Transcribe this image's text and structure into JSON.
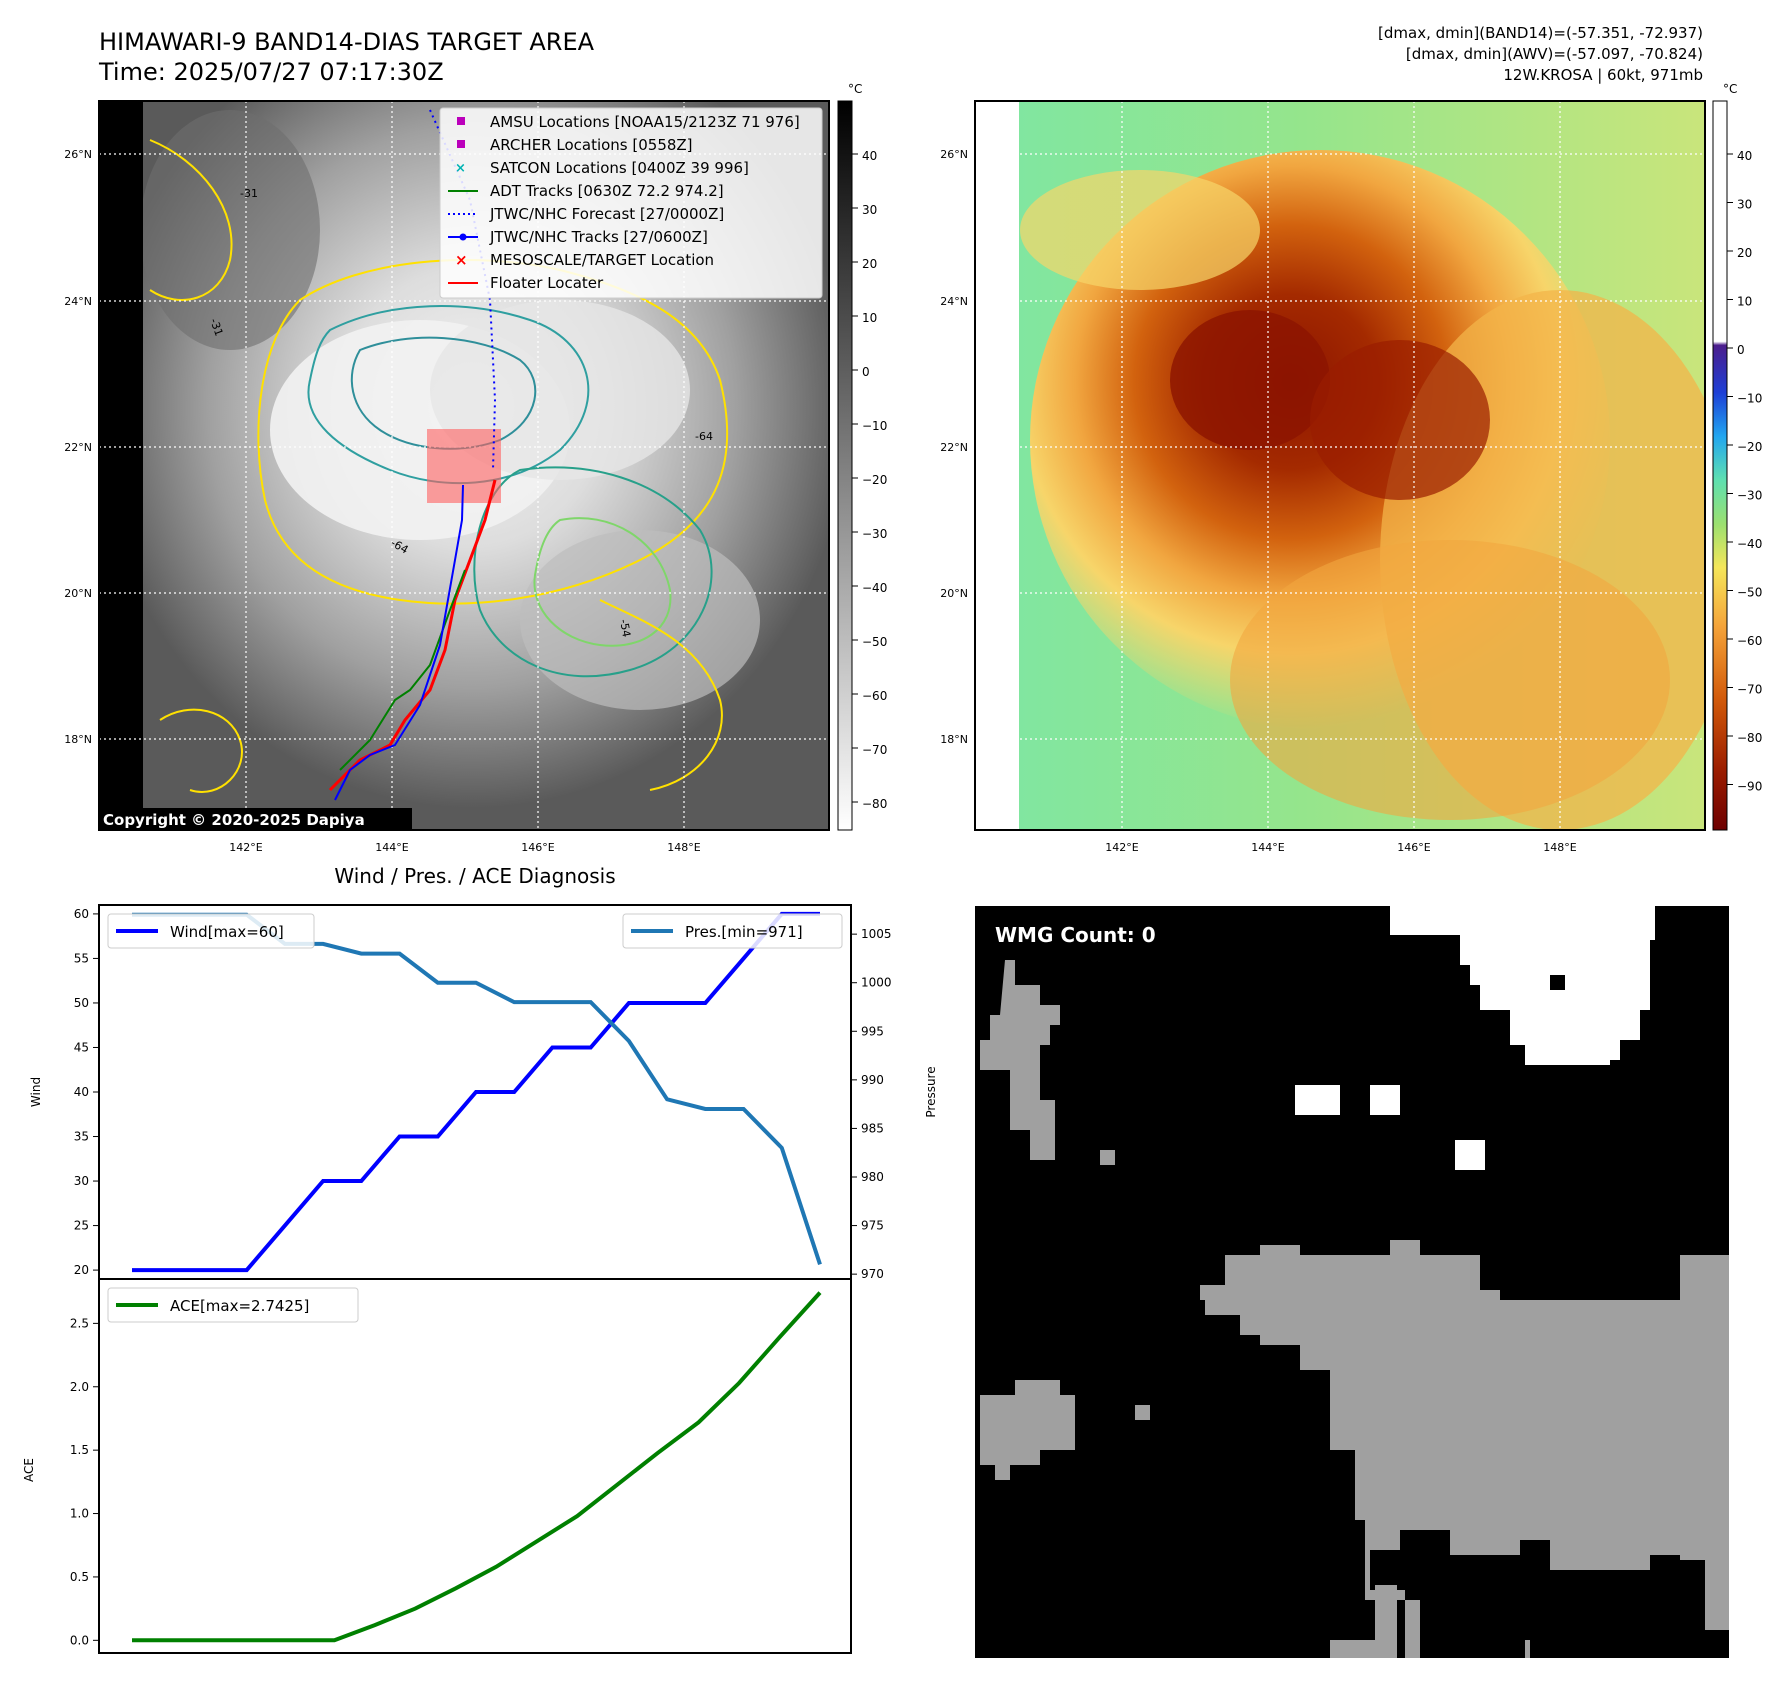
{
  "header": {
    "title_line1": "HIMAWARI-9 BAND14-DIAS TARGET AREA",
    "title_line2": "Time: 2025/07/27 07:17:30Z",
    "info_line1": "[dmax, dmin](BAND14)=(-57.351, -72.937)",
    "info_line2": "[dmax, dmin](AWV)=(-57.097, -70.824)",
    "info_line3": "12W.KROSA | 60kt, 971mb"
  },
  "map_left": {
    "lat_labels": [
      "26°N",
      "24°N",
      "22°N",
      "20°N",
      "18°N"
    ],
    "lon_labels": [
      "142°E",
      "144°E",
      "146°E",
      "148°E"
    ],
    "contour_labels": [
      "-31",
      "-31",
      "-64",
      "-64",
      "-54",
      "-31"
    ],
    "copyright": "Copyright © 2020-2025 Dapiya",
    "colorbar_unit": "°C",
    "colorbar_ticks": [
      "40",
      "30",
      "20",
      "10",
      "0",
      "−10",
      "−20",
      "−30",
      "−40",
      "−50",
      "−60",
      "−70",
      "−80"
    ],
    "legend": [
      {
        "label": "AMSU Locations [NOAA15/2123Z 71 976]",
        "marker": "square",
        "color": "#bb00bb"
      },
      {
        "label": "ARCHER Locations [0558Z]",
        "marker": "square",
        "color": "#bb00bb"
      },
      {
        "label": "SATCON Locations [0400Z 39 996]",
        "marker": "x",
        "color": "#00b3b3"
      },
      {
        "label": "ADT Tracks [0630Z 72.2 974.2]",
        "marker": "line",
        "color": "#008000"
      },
      {
        "label": "JTWC/NHC Forecast [27/0000Z]",
        "marker": "dotted",
        "color": "#0000ff"
      },
      {
        "label": "JTWC/NHC Tracks [27/0600Z]",
        "marker": "line-dot",
        "color": "#0000ff"
      },
      {
        "label": "MESOSCALE/TARGET Location",
        "marker": "x",
        "color": "#ff0000"
      },
      {
        "label": "Floater Locater",
        "marker": "line",
        "color": "#ff0000"
      }
    ]
  },
  "map_right": {
    "lat_labels": [
      "26°N",
      "24°N",
      "22°N",
      "20°N",
      "18°N"
    ],
    "lon_labels": [
      "142°E",
      "144°E",
      "146°E",
      "148°E"
    ],
    "colorbar_unit": "°C",
    "colorbar_ticks": [
      "40",
      "30",
      "20",
      "10",
      "0",
      "−10",
      "−20",
      "−30",
      "−40",
      "−50",
      "−60",
      "−70",
      "−80",
      "−90"
    ]
  },
  "wmg": {
    "label": "WMG Count: 0"
  },
  "chart_data": [
    {
      "type": "line",
      "title": "Wind / Pres. / ACE Diagnosis",
      "ylabel": "Wind",
      "ylabel_right": "Pressure",
      "ylim": [
        19,
        61
      ],
      "ylim_right": [
        969.5,
        1008
      ],
      "yticks": [
        "60",
        "55",
        "50",
        "45",
        "40",
        "35",
        "30",
        "25",
        "20"
      ],
      "yticks_right": [
        "1005",
        "1000",
        "995",
        "990",
        "985",
        "980",
        "975",
        "970"
      ],
      "series": [
        {
          "name": "Wind[max=60]",
          "color": "#0000ff",
          "axis": "left",
          "values": [
            20,
            20,
            20,
            20,
            25,
            30,
            30,
            35,
            35,
            40,
            40,
            45,
            45,
            50,
            50,
            50,
            55,
            60,
            60
          ]
        },
        {
          "name": "Pres.[min=971]",
          "color": "#1f77b4",
          "axis": "right",
          "values": [
            1007,
            1007,
            1007,
            1007,
            1004,
            1004,
            1003,
            1003,
            1000,
            1000,
            998,
            998,
            998,
            994,
            988,
            987,
            987,
            983,
            971
          ]
        }
      ]
    },
    {
      "type": "line",
      "ylabel": "ACE",
      "ylim": [
        -0.1,
        2.85
      ],
      "yticks": [
        "2.5",
        "2.0",
        "1.5",
        "1.0",
        "0.5",
        "0.0"
      ],
      "series": [
        {
          "name": "ACE[max=2.7425]",
          "color": "#008000",
          "values": [
            0,
            0,
            0,
            0,
            0,
            0,
            0.12,
            0.25,
            0.41,
            0.58,
            0.78,
            0.98,
            1.23,
            1.48,
            1.72,
            2.03,
            2.39,
            2.7425
          ]
        }
      ]
    }
  ]
}
